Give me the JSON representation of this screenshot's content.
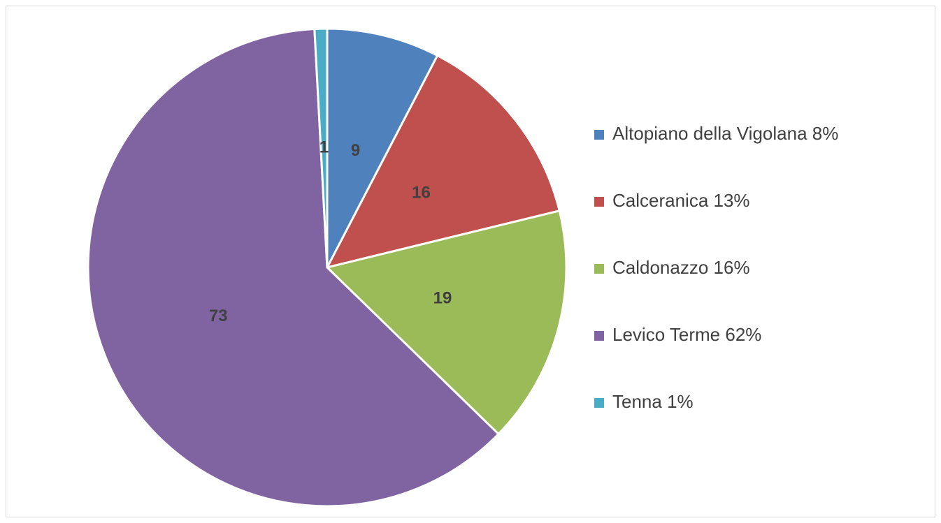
{
  "chart_data": {
    "type": "pie",
    "categories": [
      "Altopiano della Vigolana 8%",
      "Calceranica 13%",
      "Caldonazzo 16%",
      "Levico Terme 62%",
      "Tenna 1%"
    ],
    "values": [
      9,
      16,
      19,
      73,
      1
    ],
    "colors": [
      "#4f81bd",
      "#c0504d",
      "#9bbb59",
      "#8064a2",
      "#4bacc6"
    ],
    "legend": "right"
  }
}
